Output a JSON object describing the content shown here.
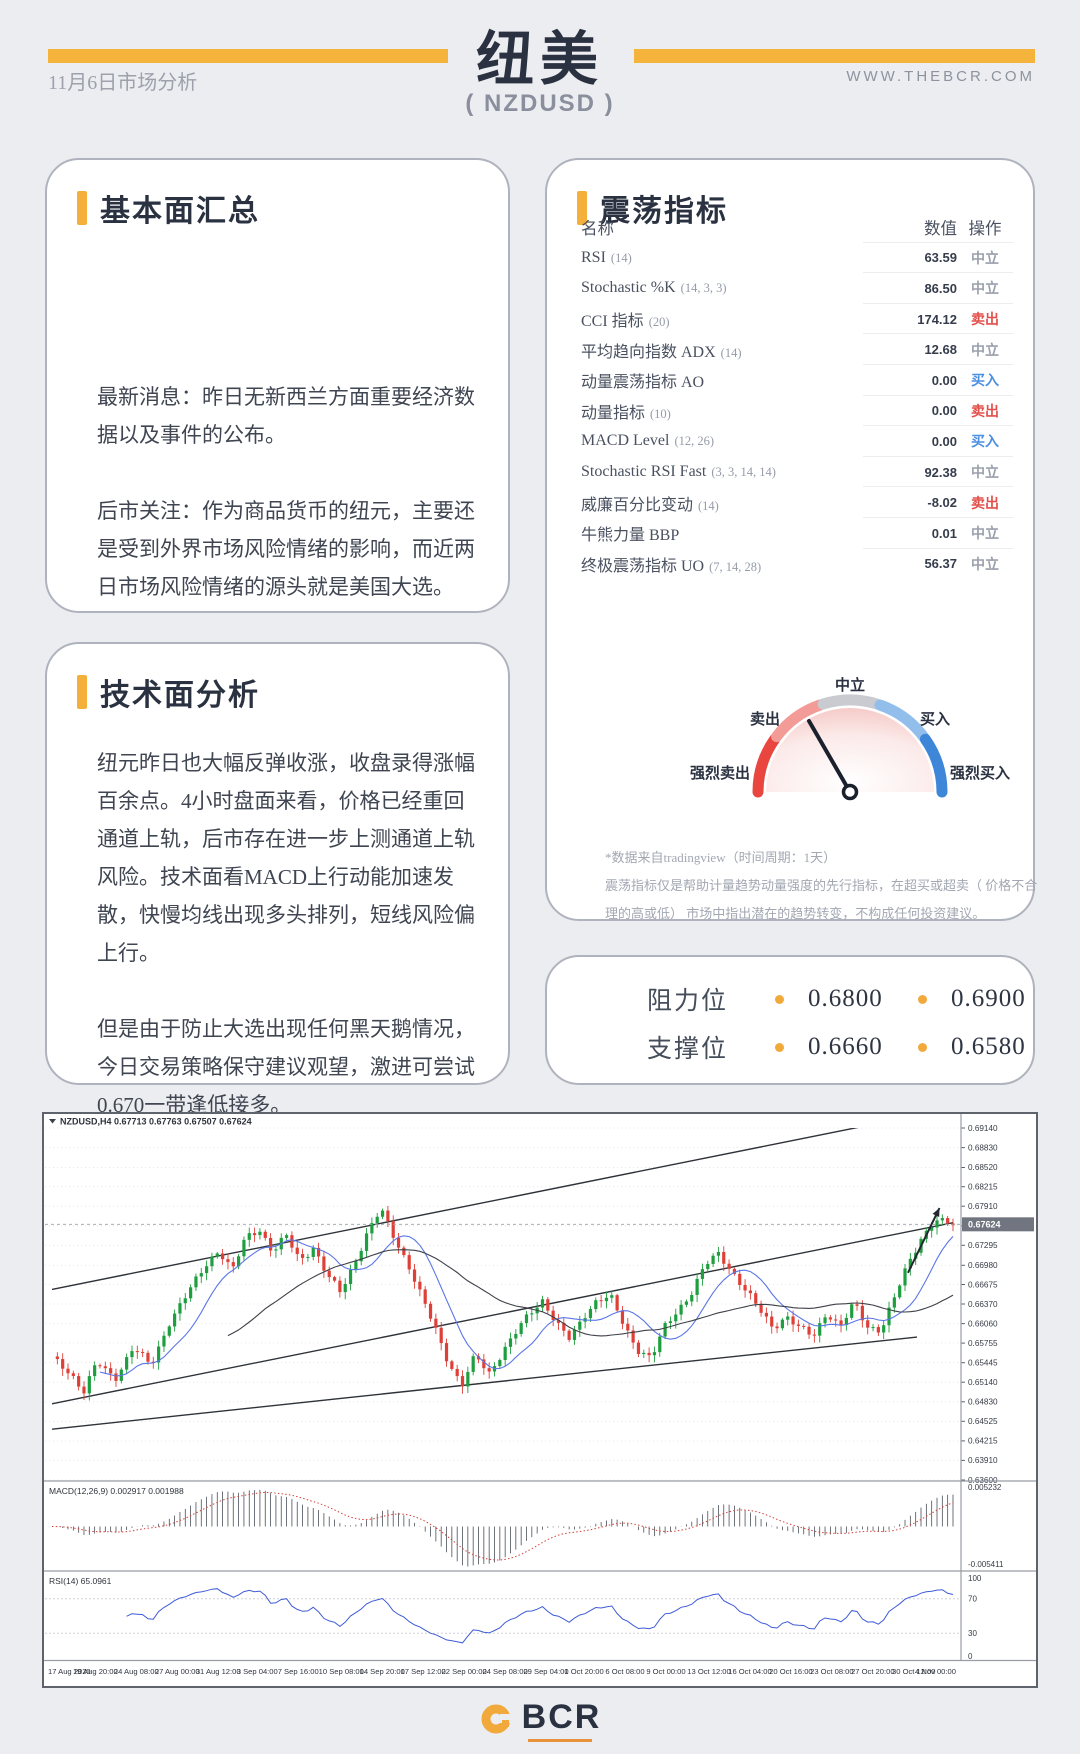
{
  "header": {
    "date_label": "11月6日市场分析",
    "title": "纽美",
    "subtitle": "( NZDUSD )",
    "website": "WWW.THEBCR.COM"
  },
  "fundamental": {
    "title": "基本面汇总",
    "paragraphs": [
      "最新消息：昨日无新西兰方面重要经济数据以及事件的公布。",
      "后市关注：作为商品货币的纽元，主要还是受到外界市场风险情绪的影响，而近两日市场风险情绪的源头就是美国大选。"
    ]
  },
  "technical": {
    "title": "技术面分析",
    "paragraphs": [
      "纽元昨日也大幅反弹收涨，收盘录得涨幅百余点。4小时盘面来看，价格已经重回通道上轨，后市存在进一步上测通道上轨风险。技术面看MACD上行动能加速发散，快慢均线出现多头排列，短线风险偏上行。",
      "但是由于防止大选出现任何黑天鹅情况，今日交易策略保守建议观望，激进可尝试0.670一带逢低接多。"
    ]
  },
  "oscillators": {
    "title": "震荡指标",
    "columns": [
      "名称",
      "数值",
      "操作"
    ],
    "rows": [
      {
        "name": "RSI",
        "param": "(14)",
        "value": "63.59",
        "action": "中立",
        "action_type": "neutral"
      },
      {
        "name": "Stochastic %K",
        "param": "(14, 3, 3)",
        "value": "86.50",
        "action": "中立",
        "action_type": "neutral"
      },
      {
        "name": "CCI 指标",
        "param": "(20)",
        "value": "174.12",
        "action": "卖出",
        "action_type": "sell"
      },
      {
        "name": "平均趋向指数 ADX",
        "param": "(14)",
        "value": "12.68",
        "action": "中立",
        "action_type": "neutral"
      },
      {
        "name": "动量震荡指标 AO",
        "param": "",
        "value": "0.00",
        "action": "买入",
        "action_type": "buy"
      },
      {
        "name": "动量指标",
        "param": "(10)",
        "value": "0.00",
        "action": "卖出",
        "action_type": "sell"
      },
      {
        "name": "MACD Level",
        "param": "(12, 26)",
        "value": "0.00",
        "action": "买入",
        "action_type": "buy"
      },
      {
        "name": "Stochastic RSI Fast",
        "param": "(3, 3, 14, 14)",
        "value": "92.38",
        "action": "中立",
        "action_type": "neutral"
      },
      {
        "name": "威廉百分比变动",
        "param": "(14)",
        "value": "-8.02",
        "action": "卖出",
        "action_type": "sell"
      },
      {
        "name": "牛熊力量 BBP",
        "param": "",
        "value": "0.01",
        "action": "中立",
        "action_type": "neutral"
      },
      {
        "name": "终极震荡指标 UO",
        "param": "(7, 14, 28)",
        "value": "56.37",
        "action": "中立",
        "action_type": "neutral"
      }
    ],
    "gauge": {
      "needle_deg": 120,
      "segments": [
        {
          "label": "强烈卖出",
          "color": "#E8463F"
        },
        {
          "label": "卖出",
          "color": "#F29B97"
        },
        {
          "label": "中立",
          "color": "#C9CBD0"
        },
        {
          "label": "买入",
          "color": "#92BEEC"
        },
        {
          "label": "强烈买入",
          "color": "#3E87D8"
        }
      ]
    },
    "footnote": [
      "*数据来自tradingview（时间周期：1天）",
      "震荡指标仅是帮助计量趋势动量强度的先行指标，在超买或超卖（ 价格不合",
      "理的高或低） 市场中指出潜在的趋势转变，不构成任何投资建议。"
    ]
  },
  "levels": {
    "resistance_label": "阻力位",
    "resistance": [
      "0.6800",
      "0.6900"
    ],
    "support_label": "支撑位",
    "support": [
      "0.6660",
      "0.6580"
    ]
  },
  "chart_data": {
    "type": "candlestick",
    "ohlc_title": "NZDUSD,H4  0.67713 0.67763 0.67507 0.67624",
    "symbol": "NZDUSD",
    "timeframe": "H4",
    "open": "0.67713",
    "high": "0.67763",
    "low": "0.67507",
    "close": "0.67624",
    "current_price": 0.67624,
    "current_price_label": "0.67624",
    "candles_count": 170,
    "price_axis": {
      "min": 0.636,
      "max": 0.6914,
      "ticks": [
        "0.69140",
        "0.68830",
        "0.68520",
        "0.68215",
        "0.67910",
        "0.67600",
        "0.67295",
        "0.66980",
        "0.66675",
        "0.66370",
        "0.66060",
        "0.65755",
        "0.65445",
        "0.65140",
        "0.64830",
        "0.64525",
        "0.64215",
        "0.63910",
        "0.63600"
      ]
    },
    "price_waypoints": [
      [
        0.0,
        0.6552
      ],
      [
        0.02,
        0.653
      ],
      [
        0.035,
        0.6498
      ],
      [
        0.05,
        0.6545
      ],
      [
        0.07,
        0.652
      ],
      [
        0.09,
        0.6568
      ],
      [
        0.11,
        0.654
      ],
      [
        0.13,
        0.6608
      ],
      [
        0.15,
        0.6652
      ],
      [
        0.17,
        0.6698
      ],
      [
        0.185,
        0.6722
      ],
      [
        0.2,
        0.6688
      ],
      [
        0.215,
        0.6742
      ],
      [
        0.23,
        0.6756
      ],
      [
        0.245,
        0.6718
      ],
      [
        0.26,
        0.6744
      ],
      [
        0.275,
        0.6706
      ],
      [
        0.29,
        0.6726
      ],
      [
        0.305,
        0.6682
      ],
      [
        0.32,
        0.6656
      ],
      [
        0.335,
        0.67
      ],
      [
        0.35,
        0.6748
      ],
      [
        0.365,
        0.6786
      ],
      [
        0.38,
        0.6742
      ],
      [
        0.395,
        0.67
      ],
      [
        0.41,
        0.6648
      ],
      [
        0.425,
        0.66
      ],
      [
        0.44,
        0.6546
      ],
      [
        0.455,
        0.6508
      ],
      [
        0.47,
        0.6556
      ],
      [
        0.485,
        0.6528
      ],
      [
        0.5,
        0.6562
      ],
      [
        0.515,
        0.6592
      ],
      [
        0.53,
        0.6622
      ],
      [
        0.545,
        0.6644
      ],
      [
        0.56,
        0.6606
      ],
      [
        0.575,
        0.658
      ],
      [
        0.59,
        0.6618
      ],
      [
        0.605,
        0.6644
      ],
      [
        0.62,
        0.6648
      ],
      [
        0.635,
        0.6602
      ],
      [
        0.65,
        0.6566
      ],
      [
        0.665,
        0.6552
      ],
      [
        0.68,
        0.66
      ],
      [
        0.695,
        0.6628
      ],
      [
        0.71,
        0.6656
      ],
      [
        0.725,
        0.6698
      ],
      [
        0.74,
        0.6716
      ],
      [
        0.755,
        0.6688
      ],
      [
        0.77,
        0.6658
      ],
      [
        0.785,
        0.6628
      ],
      [
        0.8,
        0.66
      ],
      [
        0.815,
        0.6618
      ],
      [
        0.83,
        0.6598
      ],
      [
        0.845,
        0.6586
      ],
      [
        0.86,
        0.6625
      ],
      [
        0.875,
        0.66
      ],
      [
        0.89,
        0.6638
      ],
      [
        0.905,
        0.6602
      ],
      [
        0.92,
        0.6596
      ],
      [
        0.935,
        0.6646
      ],
      [
        0.95,
        0.67
      ],
      [
        0.965,
        0.6742
      ],
      [
        0.98,
        0.6768
      ],
      [
        1.0,
        0.6762
      ]
    ],
    "moving_averages": [
      {
        "period": 10,
        "color": "#5B76E8"
      },
      {
        "period": 34,
        "color": "#3E4148"
      }
    ],
    "trendlines": [
      {
        "from": [
          0.0,
          0.666
        ],
        "to": [
          1.0,
          0.6945
        ]
      },
      {
        "from": [
          0.0,
          0.648
        ],
        "to": [
          1.0,
          0.6765
        ]
      },
      {
        "from": [
          0.0,
          0.644
        ],
        "to": [
          0.96,
          0.6585
        ]
      }
    ],
    "arrow": {
      "from": [
        0.95,
        0.6686
      ],
      "to": [
        0.985,
        0.6788
      ]
    },
    "macd": {
      "label": "MACD(12,26,9) 0.002917 0.001988",
      "axis": [
        "0.005232",
        "-0.005411"
      ]
    },
    "rsi": {
      "label": "RSI(14) 65.0961",
      "levels": [
        70,
        30
      ],
      "axis": [
        "100",
        "70",
        "30",
        "0"
      ]
    },
    "time_labels": [
      "17 Aug 2020",
      "19 Aug 20:00",
      "24 Aug 08:00",
      "27 Aug 00:00",
      "31 Aug 12:00",
      "3 Sep 04:00",
      "7 Sep 16:00",
      "10 Sep 08:00",
      "14 Sep 20:00",
      "17 Sep 12:00",
      "22 Sep 00:00",
      "24 Sep 08:00",
      "29 Sep 04:00",
      "1 Oct 20:00",
      "6 Oct 08:00",
      "9 Oct 00:00",
      "13 Oct 12:00",
      "16 Oct 04:00",
      "20 Oct 16:00",
      "23 Oct 08:00",
      "27 Oct 20:00",
      "30 Oct 12:00",
      "4 Nov 00:00"
    ],
    "colors": {
      "up": "#1E9E3E",
      "down": "#DE4038",
      "ma_fast": "#5B76E8",
      "ma_slow": "#3E4148",
      "trendline": "#2E3339",
      "grid": "#DCDEE3",
      "macd_hist": "#4A4F58",
      "macd_signal": "#D2413A",
      "rsi_line": "#3F5BD6",
      "axis_text": "#363B45",
      "current_price_bg": "#70757F"
    }
  },
  "footer": {
    "brand": "BCR"
  }
}
